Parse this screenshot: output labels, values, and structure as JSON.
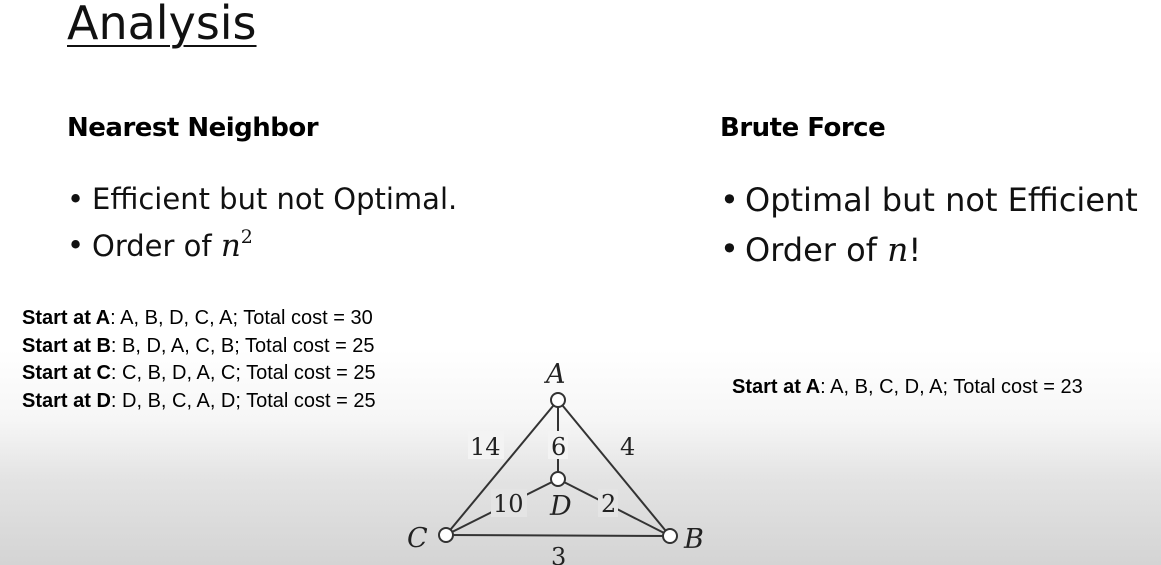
{
  "slide": {
    "title": "Analysis",
    "left": {
      "heading": "Nearest Neighbor",
      "bullets": [
        {
          "text": "Efficient but not Optimal."
        },
        {
          "text": "Order of ",
          "math": "n",
          "sup": "2"
        }
      ],
      "steps": [
        {
          "label": "Start at A",
          "route": ": A, B, D, C, A; Total cost = 30"
        },
        {
          "label": "Start at B",
          "route": ": B, D, A, C, B; Total cost = 25"
        },
        {
          "label": "Start at C",
          "route": ": C, B, D, A, C; Total cost = 25"
        },
        {
          "label": "Start at D",
          "route": ": D, B, C, A, D; Total cost = 25"
        }
      ]
    },
    "right": {
      "heading": "Brute Force",
      "bullets": [
        {
          "text": "Optimal but not Efficient"
        },
        {
          "text": "Order of ",
          "math": "n",
          "suffix": "!"
        }
      ],
      "step": {
        "label": "Start at A",
        "route": ": A, B, C, D, A; Total cost = 23"
      }
    },
    "graph": {
      "nodes": {
        "A": "A",
        "B": "B",
        "C": "C",
        "D": "D"
      },
      "edges": {
        "AC": "14",
        "AD": "6",
        "AB": "4",
        "CD": "10",
        "DB": "2",
        "CB": "3"
      }
    }
  }
}
